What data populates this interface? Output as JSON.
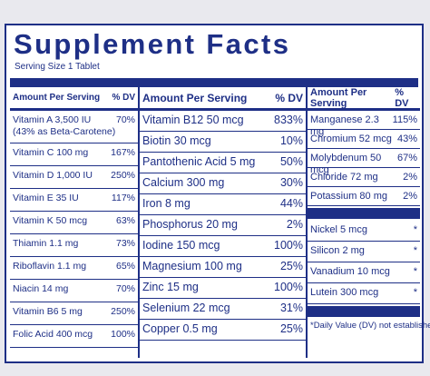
{
  "title": "Supplement Facts",
  "serving": "Serving Size 1 Tablet",
  "col1": {
    "header_amount": "Amount Per Serving",
    "header_dv": "% DV",
    "rows": [
      {
        "name": "Vitamin A 3,500 IU\n(43% as Beta-Carotene)",
        "dv": "70%"
      },
      {
        "name": "Vitamin C 100 mg",
        "dv": "167%"
      },
      {
        "name": "Vitamin D 1,000 IU",
        "dv": "250%"
      },
      {
        "name": "Vitamin E 35 IU",
        "dv": "117%"
      },
      {
        "name": "Vitamin K 50 mcg",
        "dv": "63%"
      },
      {
        "name": "Thiamin 1.1 mg",
        "dv": "73%"
      },
      {
        "name": "Riboflavin 1.1 mg",
        "dv": "65%"
      },
      {
        "name": "Niacin 14 mg",
        "dv": "70%"
      },
      {
        "name": "Vitamin B6 5 mg",
        "dv": "250%"
      },
      {
        "name": "Folic Acid 400 mcg",
        "dv": "100%"
      }
    ]
  },
  "col2": {
    "header_amount": "Amount Per Serving",
    "header_dv": "% DV",
    "rows": [
      {
        "name": "Vitamin B12 50 mcg",
        "dv": "833%"
      },
      {
        "name": "Biotin 30 mcg",
        "dv": "10%"
      },
      {
        "name": "Pantothenic Acid 5 mg",
        "dv": "50%"
      },
      {
        "name": "Calcium 300 mg",
        "dv": "30%"
      },
      {
        "name": "Iron 8 mg",
        "dv": "44%"
      },
      {
        "name": "Phosphorus 20 mg",
        "dv": "2%"
      },
      {
        "name": "Iodine 150 mcg",
        "dv": "100%"
      },
      {
        "name": "Magnesium 100 mg",
        "dv": "25%"
      },
      {
        "name": "Zinc 15 mg",
        "dv": "100%"
      },
      {
        "name": "Selenium 22 mcg",
        "dv": "31%"
      },
      {
        "name": "Copper 0.5 mg",
        "dv": "25%"
      }
    ]
  },
  "col3": {
    "header_amount": "Amount Per Serving",
    "header_dv": "% DV",
    "rows_dv": [
      {
        "name": "Manganese 2.3 mg",
        "dv": "115%"
      },
      {
        "name": "Chromium 52 mcg",
        "dv": "43%"
      },
      {
        "name": "Molybdenum 50 mcg",
        "dv": "67%"
      },
      {
        "name": "Chloride 72 mg",
        "dv": "2%"
      },
      {
        "name": "Potassium 80 mg",
        "dv": "2%"
      }
    ],
    "rows_nodv": [
      {
        "name": "Nickel 5 mcg",
        "dv": "*"
      },
      {
        "name": "Silicon 2 mg",
        "dv": "*"
      },
      {
        "name": "Vanadium 10 mcg",
        "dv": "*"
      },
      {
        "name": "Lutein 300 mcg",
        "dv": "*"
      }
    ],
    "footnote": "*Daily Value (DV) not established."
  }
}
